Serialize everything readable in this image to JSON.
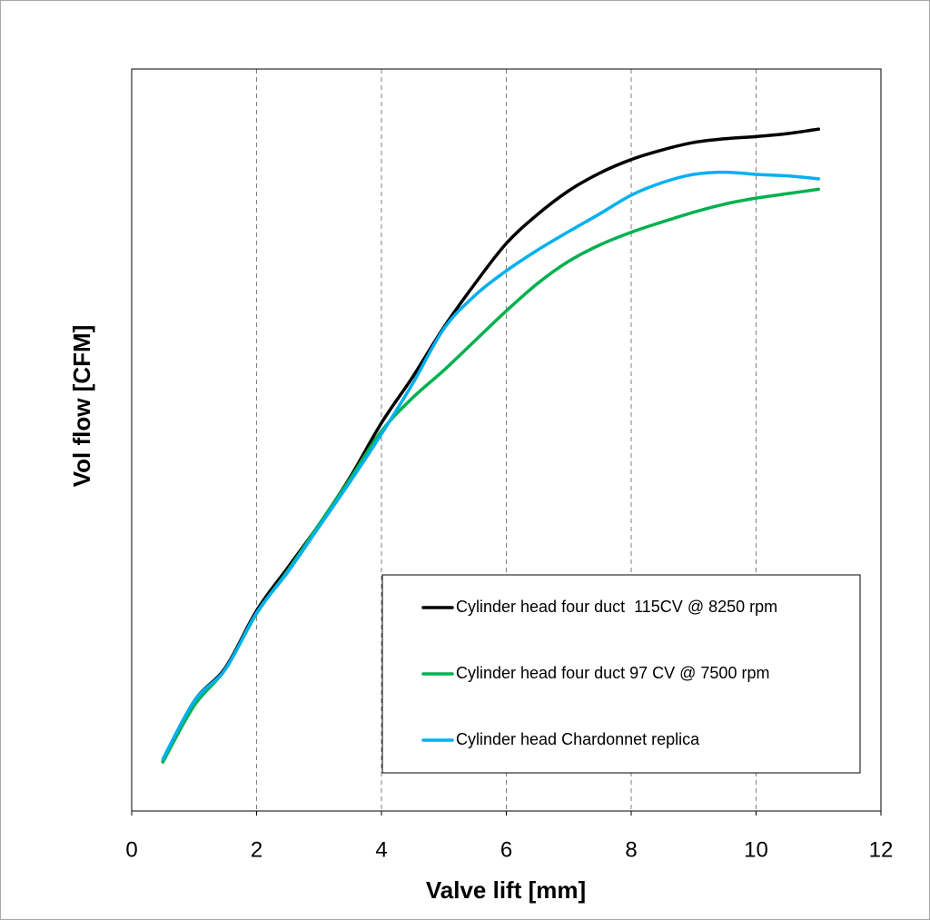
{
  "chart_data": {
    "type": "line",
    "xlabel": "Valve lift [mm]",
    "ylabel": "Vol flow [CFM]",
    "x": [
      0.5,
      1,
      1.5,
      2,
      2.5,
      3,
      3.5,
      4,
      4.5,
      5,
      5.5,
      6,
      6.5,
      7,
      7.5,
      8,
      8.5,
      9,
      9.5,
      10,
      10.5,
      11
    ],
    "series": [
      {
        "name": "Cylinder head four duct  115CV @ 8250 rpm",
        "color": "#000000",
        "values": [
          6.7,
          14.8,
          19.3,
          27.0,
          32.8,
          38.6,
          45.0,
          52.3,
          58.5,
          65.2,
          71.1,
          76.5,
          80.4,
          83.6,
          86.0,
          87.8,
          89.1,
          90.1,
          90.6,
          90.9,
          91.3,
          91.9
        ]
      },
      {
        "name": "Cylinder head four duct 97 CV @ 7500 rpm",
        "color": "#00b050",
        "values": [
          6.6,
          14.2,
          19.1,
          26.6,
          32.4,
          38.6,
          44.8,
          51.2,
          55.7,
          59.4,
          63.4,
          67.4,
          71.1,
          74.1,
          76.3,
          78.0,
          79.4,
          80.7,
          81.8,
          82.6,
          83.2,
          83.8
        ]
      },
      {
        "name": "Cylinder head Chardonnet replica",
        "color": "#00b0f0",
        "values": [
          7.0,
          14.8,
          19.1,
          26.7,
          32.2,
          38.3,
          44.4,
          50.8,
          57.6,
          65.0,
          69.5,
          72.8,
          75.6,
          78.1,
          80.5,
          83.0,
          84.7,
          85.8,
          86.1,
          85.8,
          85.6,
          85.2
        ]
      }
    ],
    "xlim": [
      0,
      12
    ],
    "xticks": [
      0,
      2,
      4,
      6,
      8,
      10,
      12
    ],
    "ylim": [
      0,
      100
    ],
    "grid": "x"
  }
}
